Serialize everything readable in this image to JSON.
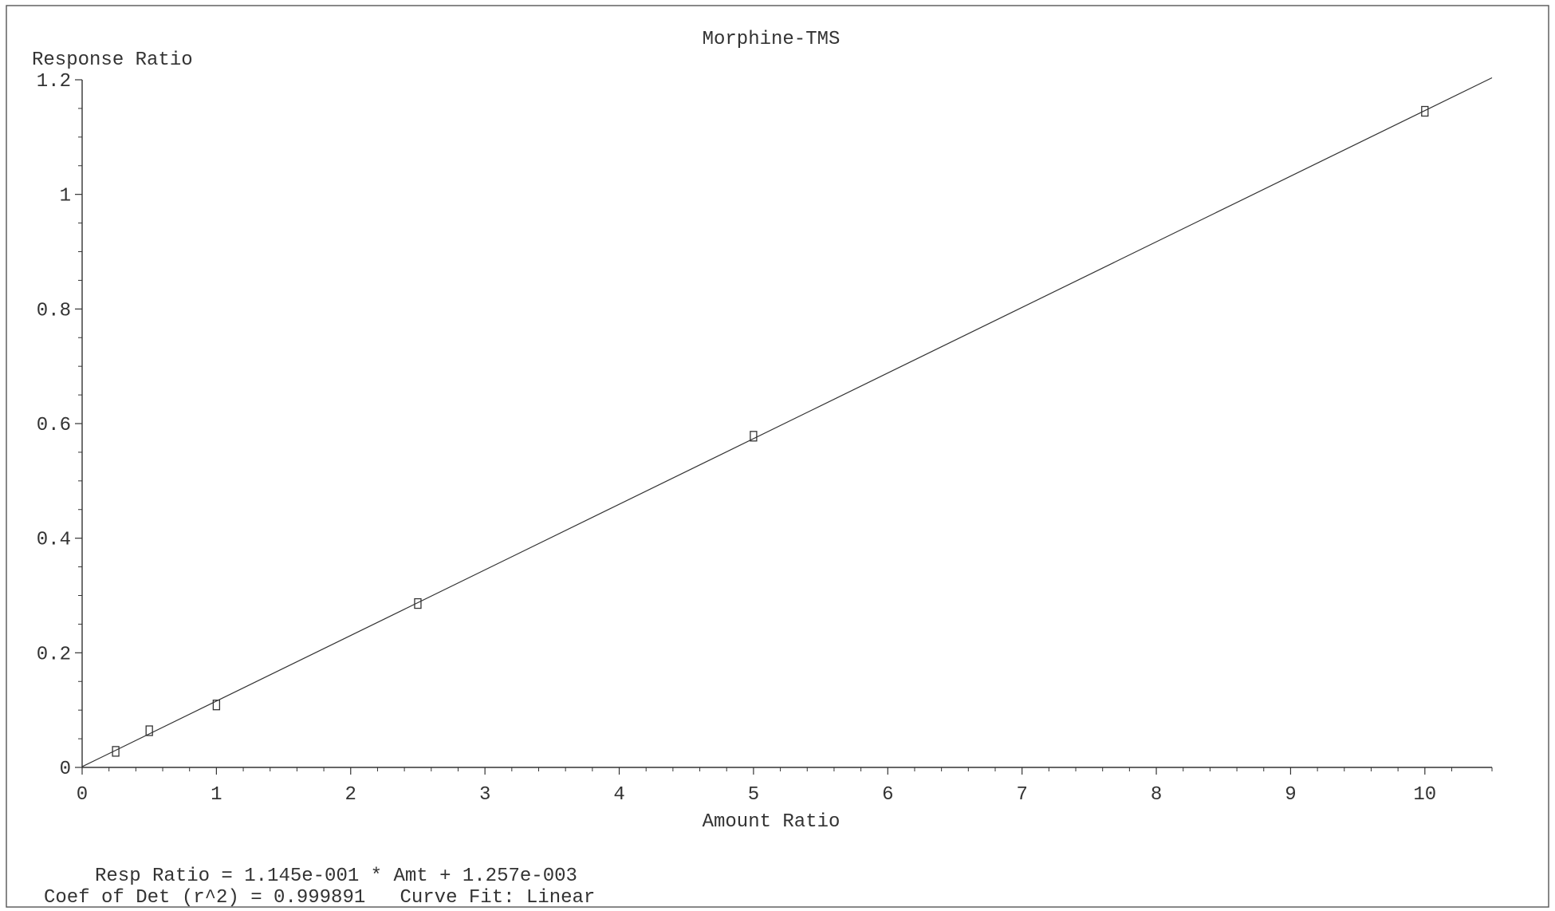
{
  "chart_data": {
    "type": "scatter",
    "title": "Morphine-TMS",
    "xlabel": "Amount Ratio",
    "ylabel": "Response Ratio",
    "xlim": [
      0,
      10.5
    ],
    "ylim": [
      0,
      1.2
    ],
    "xticks": [
      0,
      1,
      2,
      3,
      4,
      5,
      6,
      7,
      8,
      9,
      10
    ],
    "yticks": [
      0,
      0.2,
      0.4,
      0.6,
      0.8,
      1,
      1.2
    ],
    "xtick_labels": [
      "0",
      "1",
      "2",
      "3",
      "4",
      "5",
      "6",
      "7",
      "8",
      "9",
      "10"
    ],
    "ytick_labels": [
      "0",
      "0.2",
      "0.4",
      "0.6",
      "0.8",
      "1",
      "1.2"
    ],
    "grid": false,
    "points": {
      "x": [
        0.25,
        0.5,
        1,
        2.5,
        5,
        10
      ],
      "y": [
        0.028,
        0.064,
        0.109,
        0.286,
        0.578,
        1.145
      ]
    },
    "fit": {
      "type": "linear",
      "slope": 0.1145,
      "intercept": 0.001257
    },
    "annotations": {
      "equation": "Resp Ratio = 1.145e-001 * Amt + 1.257e-003",
      "stats": "Coef of Det (r^2) = 0.999891   Curve Fit: Linear"
    }
  }
}
